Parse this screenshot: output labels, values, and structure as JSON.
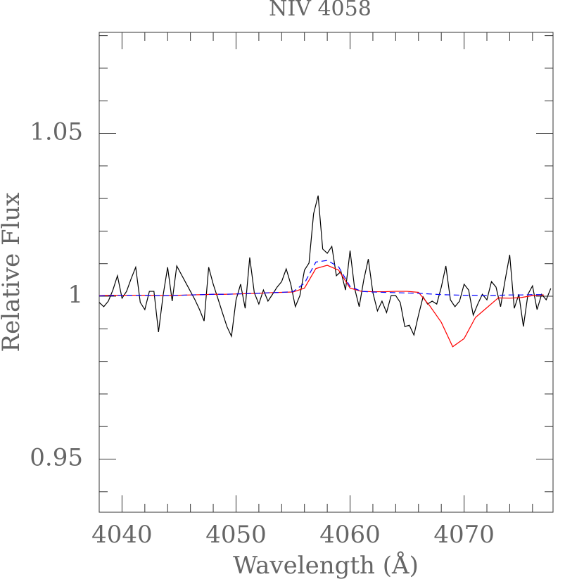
{
  "chart_data": {
    "type": "line",
    "title": "NIV 4058",
    "xlabel": "Wavelength (Å)",
    "ylabel": "Relative Flux",
    "xlim": [
      4038,
      4077.8
    ],
    "ylim": [
      0.9337,
      1.081
    ],
    "xticks": [
      4040,
      4050,
      4060,
      4070
    ],
    "yticks": [
      0.95,
      1,
      1.05
    ],
    "xminor_ticks": [
      4042,
      4044,
      4046,
      4048,
      4052,
      4054,
      4056,
      4058,
      4062,
      4064,
      4066,
      4068,
      4072,
      4074,
      4076
    ],
    "yminor_ticks": [
      0.94,
      0.96,
      0.97,
      0.98,
      0.99,
      1.01,
      1.02,
      1.03,
      1.04,
      1.06,
      1.07,
      1.08
    ],
    "series": [
      {
        "color": "#000000",
        "dash": false,
        "x": [
          4038,
          4038.4,
          4038.8,
          4039.2,
          4039.6,
          4040,
          4040.4,
          4040.8,
          4041.2,
          4041.6,
          4042,
          4042.4,
          4042.8,
          4043.2,
          4043.6,
          4044,
          4044.4,
          4044.8,
          4045.2,
          4045.6,
          4046,
          4046.4,
          4046.8,
          4047.2,
          4047.6,
          4048,
          4048.4,
          4048.8,
          4049.2,
          4049.6,
          4050,
          4050.4,
          4050.8,
          4051.2,
          4051.6,
          4052,
          4052.4,
          4052.8,
          4053.2,
          4053.6,
          4054,
          4054.4,
          4054.8,
          4055.2,
          4055.6,
          4056,
          4056.4,
          4056.8,
          4057.2,
          4057.6,
          4058,
          4058.4,
          4058.8,
          4059.2,
          4059.6,
          4060,
          4060.4,
          4060.8,
          4061.2,
          4061.6,
          4062,
          4062.4,
          4062.8,
          4063.2,
          4063.6,
          4064,
          4064.4,
          4064.8,
          4065.2,
          4065.6,
          4066,
          4066.4,
          4066.8,
          4067.2,
          4067.6,
          4068,
          4068.4,
          4068.8,
          4069.2,
          4069.6,
          4070,
          4070.4,
          4070.8,
          4071.2,
          4071.6,
          4072,
          4072.4,
          4072.8,
          4073.2,
          4073.6,
          4074,
          4074.4,
          4074.8,
          4075.2,
          4075.6,
          4076,
          4076.4,
          4076.8,
          4077.2,
          4077.6
        ],
        "values": [
          0.9981,
          0.9968,
          0.9985,
          1.0019,
          1.0063,
          0.9994,
          1.0015,
          1.0054,
          1.0089,
          0.9981,
          0.9959,
          1.0015,
          1.0015,
          0.989,
          1.0002,
          1.0089,
          0.9985,
          1.0093,
          1.0067,
          1.0041,
          1.0015,
          0.9989,
          0.9959,
          0.9924,
          1.0089,
          1.0037,
          0.9994,
          0.995,
          0.9907,
          0.9877,
          0.9989,
          1.0037,
          0.9963,
          1.0119,
          1.0011,
          0.9976,
          1.0019,
          0.9985,
          1.0006,
          1.0028,
          1.0045,
          1.0084,
          1.0037,
          0.9968,
          1.0002,
          1.008,
          1.0102,
          1.0253,
          1.0309,
          1.0145,
          1.0132,
          1.0153,
          1.0063,
          1.0076,
          1.0019,
          1.014,
          1.0024,
          0.9968,
          1.005,
          1.0114,
          1.0011,
          0.9955,
          0.9985,
          0.995,
          1.0002,
          1.0002,
          0.9981,
          0.9907,
          0.9911,
          0.9881,
          0.9942,
          0.9998,
          0.9976,
          0.9985,
          0.9976,
          1.0028,
          1.0093,
          0.9989,
          0.9968,
          0.9985,
          1.0037,
          1.0019,
          0.9942,
          0.9976,
          1.0006,
          0.9989,
          1.0045,
          1.0028,
          0.9968,
          1.005,
          1.0127,
          0.9963,
          1.0006,
          0.9907,
          1.0006,
          1.0032,
          0.9959,
          1.0006,
          0.9989,
          1.0024
        ]
      },
      {
        "color": "#ff0000",
        "dash": false,
        "x": [
          4038,
          4039,
          4040,
          4041,
          4042,
          4043,
          4044,
          4045,
          4046,
          4047,
          4048,
          4049,
          4050,
          4051,
          4052,
          4053,
          4054,
          4055,
          4056,
          4057,
          4058,
          4059,
          4060,
          4061,
          4062,
          4063,
          4064,
          4065,
          4066,
          4067,
          4068,
          4069,
          4070,
          4071,
          4072,
          4073,
          4074,
          4075,
          4076,
          4077
        ],
        "values": [
          1.0002,
          1.0003,
          1.0003,
          1.0003,
          1.0003,
          1.0002,
          1.0002,
          1.0003,
          1.0004,
          1.0005,
          1.0006,
          1.0006,
          1.0007,
          1.0008,
          1.0009,
          1.0011,
          1.0012,
          1.0013,
          1.0025,
          1.0085,
          1.0095,
          1.008,
          1.0025,
          1.0015,
          1.0014,
          1.0014,
          1.0015,
          1.0015,
          1.0012,
          0.997,
          0.992,
          0.9845,
          0.987,
          0.9935,
          0.9965,
          0.9995,
          0.9994,
          0.9996,
          1.0002,
          1.0004
        ]
      },
      {
        "color": "#0000ff",
        "dash": true,
        "x": [
          4038,
          4039,
          4040,
          4041,
          4042,
          4043,
          4044,
          4045,
          4046,
          4047,
          4048,
          4049,
          4050,
          4051,
          4052,
          4053,
          4054,
          4055,
          4056,
          4057,
          4058,
          4059,
          4060,
          4061,
          4062,
          4063,
          4064,
          4065,
          4066,
          4067,
          4068,
          4069,
          4070,
          4071,
          4072,
          4073,
          4074,
          4075,
          4076,
          4077
        ],
        "values": [
          1.0001,
          1.0002,
          1.0003,
          1.0003,
          1.0003,
          1.0002,
          1.0002,
          1.0003,
          1.0004,
          1.0005,
          1.0006,
          1.0006,
          1.0007,
          1.0008,
          1.0009,
          1.0011,
          1.0012,
          1.0014,
          1.004,
          1.0105,
          1.011,
          1.009,
          1.003,
          1.0015,
          1.0013,
          1.0012,
          1.0011,
          1.001,
          1.0009,
          1.0007,
          1.0005,
          1.0004,
          1.0003,
          1.0003,
          1.0002,
          1.0003,
          1.0004,
          1.0004,
          1.0005,
          1.0005
        ]
      }
    ]
  }
}
